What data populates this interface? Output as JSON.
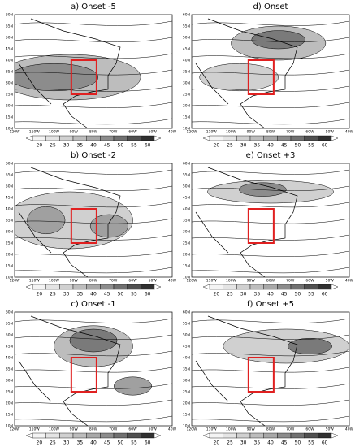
{
  "panels": [
    {
      "title": "a)  Onset -5"
    },
    {
      "title": "b)  Onset -2"
    },
    {
      "title": "c)  Onset -1"
    },
    {
      "title": "d)  Onset"
    },
    {
      "title": "e)  Onset +3"
    },
    {
      "title": "f)  Onset +5"
    }
  ],
  "lat_labels": [
    "10N",
    "15N",
    "20N",
    "25N",
    "30N",
    "35N",
    "40N",
    "45N",
    "50N",
    "55N",
    "60N"
  ],
  "lon_labels": [
    "120W",
    "110W",
    "100W",
    "90W",
    "80W",
    "70W",
    "60W",
    "50W",
    "40W"
  ],
  "colorbar_labels": [
    20,
    25,
    30,
    35,
    40,
    45,
    50,
    55,
    60
  ]
}
